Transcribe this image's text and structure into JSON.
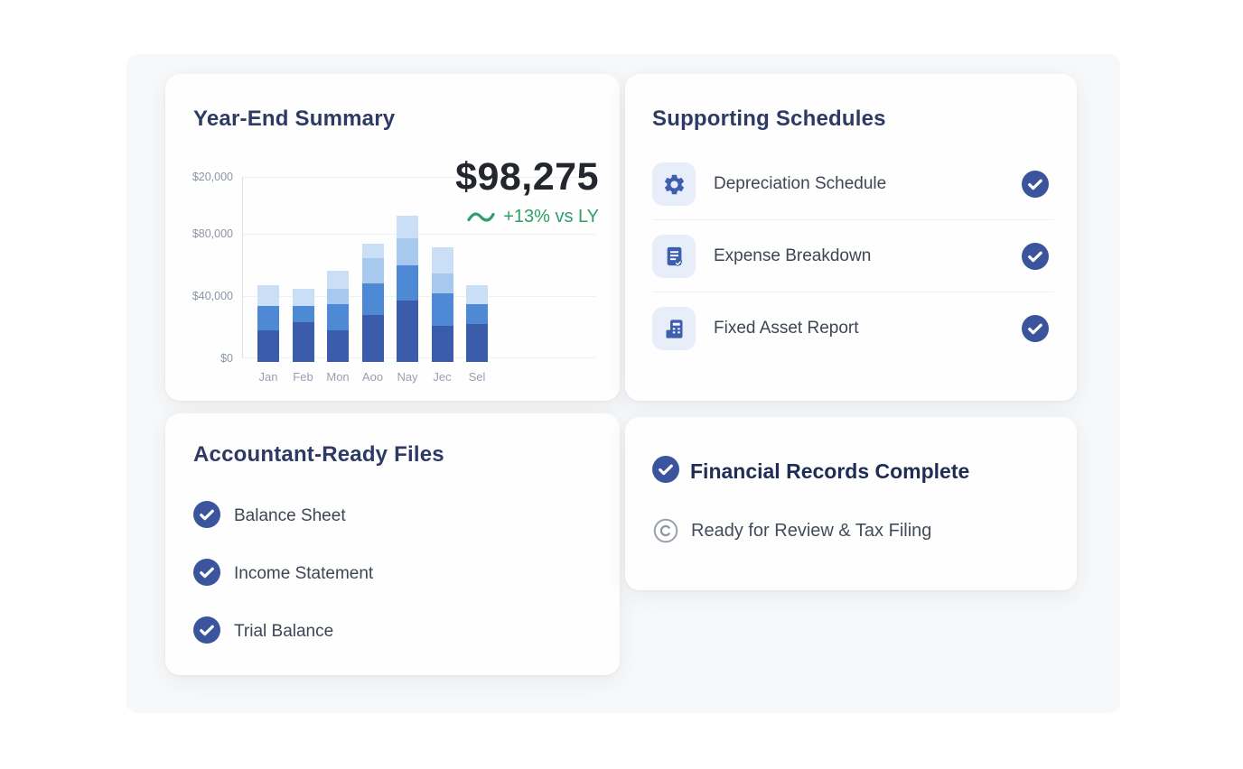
{
  "colors": {
    "accent_navy": "#3a549e",
    "icon_blue": "#3d5fae",
    "tile_bg": "#e7eef9",
    "heading_navy": "#2c3a64",
    "green": "#2f9e68",
    "panel_bg": "#f7f8f9"
  },
  "cards": {
    "year_end": {
      "title": "Year-End Summary",
      "total": "$98,275",
      "delta": "+13% vs LY"
    },
    "supporting": {
      "title": "Supporting Schedules",
      "items": [
        {
          "label": "Depreciation Schedule",
          "icon": "gear-icon",
          "status": "complete"
        },
        {
          "label": "Expense Breakdown",
          "icon": "document-check-icon",
          "status": "complete"
        },
        {
          "label": "Fixed Asset Report",
          "icon": "calculator-icon",
          "status": "complete"
        }
      ]
    },
    "files": {
      "title": "Accountant-Ready Files",
      "items": [
        {
          "label": "Balance Sheet",
          "status": "complete"
        },
        {
          "label": "Income Statement",
          "status": "complete"
        },
        {
          "label": "Trial Balance",
          "status": "complete"
        }
      ]
    },
    "status": {
      "title": "Financial Records Complete",
      "subtitle": "Ready for Review & Tax Filing"
    }
  },
  "chart_data": {
    "type": "bar",
    "stacked": true,
    "title": "Year-End Summary",
    "xlabel": "",
    "ylabel": "",
    "legend": "none",
    "grid": true,
    "categories": [
      "Jan",
      "Feb",
      "Mon",
      "Aoo",
      "Nay",
      "Jec",
      "Sel"
    ],
    "series": [
      {
        "name": "tier-1-dark",
        "color": "#3b5caa",
        "values": [
          20500,
          25500,
          20500,
          30000,
          39000,
          23000,
          24500
        ]
      },
      {
        "name": "tier-2-medium",
        "color": "#4e89d5",
        "values": [
          15500,
          10500,
          16500,
          20500,
          23000,
          21000,
          12500
        ]
      },
      {
        "name": "tier-3-light",
        "color": "#a7c9ee",
        "values": [
          0,
          0,
          10000,
          16000,
          17000,
          12500,
          0
        ]
      },
      {
        "name": "tier-4-lightest",
        "color": "#cadef5",
        "values": [
          13000,
          11000,
          11500,
          9000,
          14500,
          16500,
          12000
        ]
      }
    ],
    "totals": [
      49000,
      47000,
      58500,
      75500,
      93500,
      73000,
      49000
    ],
    "y_ticks": [
      "$20,000",
      "$80,000",
      "$40,000",
      "$0"
    ],
    "ylim": [
      0,
      116000
    ],
    "annotation_total": "$98,275",
    "annotation_delta": "+13% vs LY"
  }
}
